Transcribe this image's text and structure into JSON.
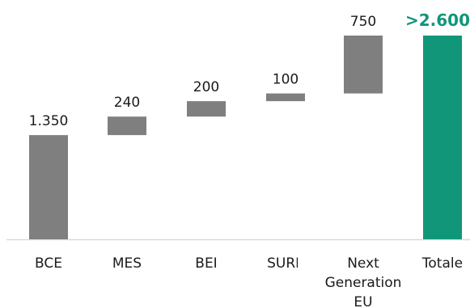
{
  "chart_data": {
    "type": "bar",
    "subtype": "waterfall",
    "categories": [
      "BCE",
      "MES",
      "BEI",
      "SURE",
      "Next Generation EU",
      "Totale"
    ],
    "category_lines": [
      [
        "BCE"
      ],
      [
        "MES"
      ],
      [
        "BEI"
      ],
      [
        "SURE"
      ],
      [
        "Next",
        "Generation",
        "EU"
      ],
      [
        "Totale"
      ]
    ],
    "values": [
      1350,
      240,
      200,
      100,
      750,
      2640
    ],
    "data_labels": [
      "1.350",
      "240",
      "200",
      "100",
      "750",
      ">2.600"
    ],
    "ylim": [
      0,
      2650
    ],
    "grid": false,
    "legend": "none",
    "colors": {
      "step": "#7f7f7f",
      "total": "#11967a",
      "axis": "#d9d9d9",
      "text": "#1a1a1a"
    }
  }
}
